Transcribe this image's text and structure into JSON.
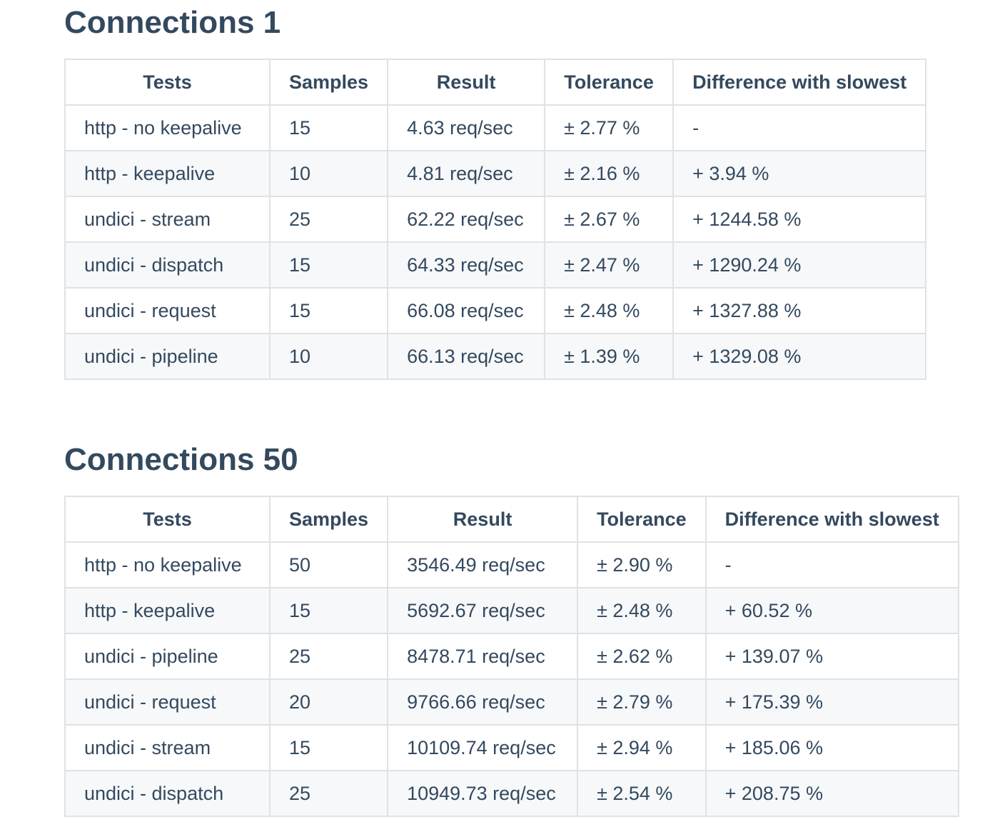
{
  "sections": [
    {
      "title": "Connections 1",
      "headers": [
        "Tests",
        "Samples",
        "Result",
        "Tolerance",
        "Difference with slowest"
      ],
      "rows": [
        [
          "http - no keepalive",
          "15",
          "4.63 req/sec",
          "± 2.77 %",
          "-"
        ],
        [
          "http - keepalive",
          "10",
          "4.81 req/sec",
          "± 2.16 %",
          "+ 3.94 %"
        ],
        [
          "undici - stream",
          "25",
          "62.22 req/sec",
          "± 2.67 %",
          "+ 1244.58 %"
        ],
        [
          "undici - dispatch",
          "15",
          "64.33 req/sec",
          "± 2.47 %",
          "+ 1290.24 %"
        ],
        [
          "undici - request",
          "15",
          "66.08 req/sec",
          "± 2.48 %",
          "+ 1327.88 %"
        ],
        [
          "undici - pipeline",
          "10",
          "66.13 req/sec",
          "± 1.39 %",
          "+ 1329.08 %"
        ]
      ]
    },
    {
      "title": "Connections 50",
      "headers": [
        "Tests",
        "Samples",
        "Result",
        "Tolerance",
        "Difference with slowest"
      ],
      "rows": [
        [
          "http - no keepalive",
          "50",
          "3546.49 req/sec",
          "± 2.90 %",
          "-"
        ],
        [
          "http - keepalive",
          "15",
          "5692.67 req/sec",
          "± 2.48 %",
          "+ 60.52 %"
        ],
        [
          "undici - pipeline",
          "25",
          "8478.71 req/sec",
          "± 2.62 %",
          "+ 139.07 %"
        ],
        [
          "undici - request",
          "20",
          "9766.66 req/sec",
          "± 2.79 %",
          "+ 175.39 %"
        ],
        [
          "undici - stream",
          "15",
          "10109.74 req/sec",
          "± 2.94 %",
          "+ 185.06 %"
        ],
        [
          "undici - dispatch",
          "25",
          "10949.73 req/sec",
          "± 2.54 %",
          "+ 208.75 %"
        ]
      ]
    }
  ]
}
